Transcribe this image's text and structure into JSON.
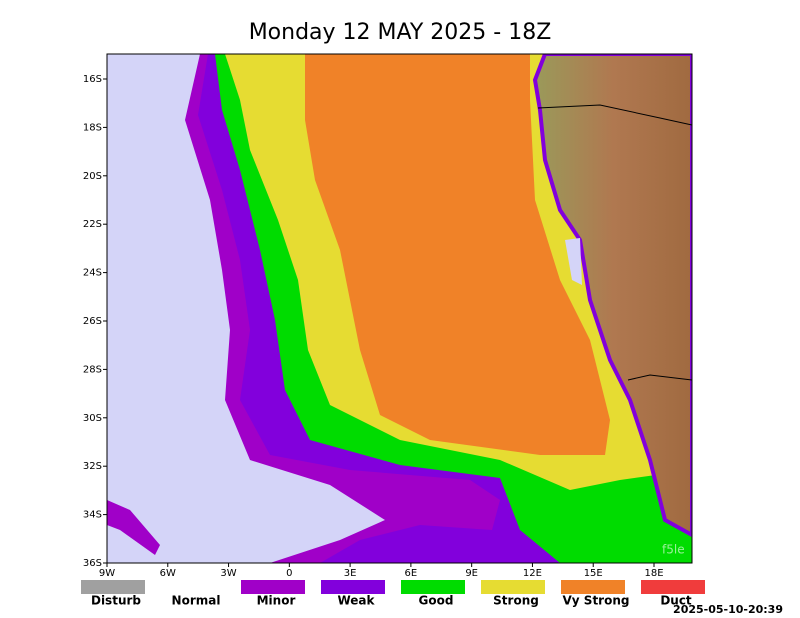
{
  "title": "Monday 12 MAY 2025 - 18Z",
  "lat_labels": [
    "16S",
    "18S",
    "20S",
    "22S",
    "24S",
    "26S",
    "28S",
    "30S",
    "32S",
    "34S",
    "36S"
  ],
  "lon_labels": [
    "9W",
    "6W",
    "3W",
    "0",
    "3E",
    "6E",
    "9E",
    "12E",
    "15E",
    "18E"
  ],
  "legend": [
    {
      "label": "Disturb",
      "color": "#a0a0a0"
    },
    {
      "label": "Normal",
      "color": "#ffffff"
    },
    {
      "label": "Minor",
      "color": "#a000c8"
    },
    {
      "label": "Weak",
      "color": "#8200dc"
    },
    {
      "label": "Good",
      "color": "#00dc00"
    },
    {
      "label": "Strong",
      "color": "#e6dc32"
    },
    {
      "label": "Vy Strong",
      "color": "#f08228"
    },
    {
      "label": "Duct",
      "color": "#f03c3c"
    }
  ],
  "timestamp": "2025-05-10-20:39",
  "watermark": "f5le"
}
